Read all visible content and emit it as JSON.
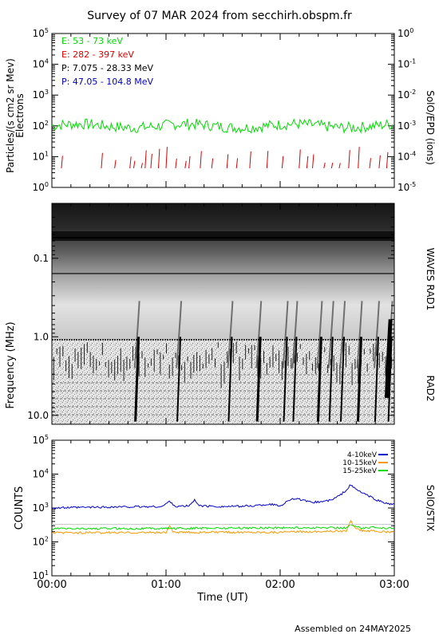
{
  "title": "Survey of 07 MAR 2024 from secchirh.obspm.fr",
  "footer": "Assembled on 24MAY2025",
  "colors": {
    "green": "#00dd00",
    "red": "#dd0000",
    "black": "#000000",
    "blue": "#0000cc",
    "orange": "#ff9900"
  },
  "chart_data": [
    {
      "type": "line",
      "name": "epd",
      "ylabel_line1": "Particles/(s cm2 sr Mev)",
      "ylabel_line2": "Electrons",
      "right_label": "SolO/EPD (ions)",
      "y_log": true,
      "ylim": [
        1,
        100000
      ],
      "yticks": [
        "10^0",
        "10^1",
        "10^2",
        "10^3",
        "10^4",
        "10^5"
      ],
      "right_ylim": [
        1e-05,
        1
      ],
      "right_yticks": [
        "10^-5",
        "10^-4",
        "10^-3",
        "10^-2",
        "10^-1",
        "10^0"
      ],
      "xlim": [
        "00:00",
        "03:00"
      ],
      "legend": [
        {
          "text": "E: 53 - 73 keV",
          "color": "#00dd00"
        },
        {
          "text": "E: 282 - 397 keV",
          "color": "#dd0000"
        },
        {
          "text": "P: 7.075 - 28.33 MeV",
          "color": "#000000"
        },
        {
          "text": "P: 47.05 - 104.8 MeV",
          "color": "#0000cc"
        }
      ],
      "series": [
        {
          "name": "E: 53 - 73 keV",
          "color": "#00dd00",
          "level": 100,
          "spread": 0.18
        },
        {
          "name": "E: 282 - 397 keV",
          "color": "#dd0000",
          "level": 6,
          "sporadic": true,
          "burst_times_min": [
            5,
            26,
            33,
            41,
            43,
            47,
            49,
            52,
            56,
            60,
            65,
            70,
            72,
            78,
            84,
            92,
            97,
            104,
            113,
            121,
            130,
            134,
            137,
            143,
            147,
            151,
            156,
            161,
            167,
            172,
            176
          ]
        }
      ]
    },
    {
      "type": "heatmap",
      "name": "waves",
      "ylabel": "Frequency (MHz)",
      "right_label_top": "WAVES RAD1",
      "right_label_bottom": "RAD2",
      "y_log": true,
      "y_reversed": true,
      "ylim": [
        0.02,
        13
      ],
      "yticks": [
        "0.1",
        "1.0",
        "10.0"
      ],
      "xlim": [
        "00:00",
        "03:00"
      ],
      "bursts_min": [
        46,
        68,
        95,
        110,
        124,
        129,
        142,
        148,
        154,
        163,
        172,
        179
      ]
    },
    {
      "type": "line",
      "name": "stix",
      "ylabel": "COUNTS",
      "right_label": "SolO/STIX",
      "y_log": true,
      "ylim": [
        10,
        100000
      ],
      "yticks": [
        "10^1",
        "10^2",
        "10^3",
        "10^4",
        "10^5"
      ],
      "xlim": [
        "00:00",
        "03:00"
      ],
      "xticks": [
        "00:00",
        "01:00",
        "02:00",
        "03:00"
      ],
      "xlabel": "Time (UT)",
      "legend": [
        {
          "text": "4-10keV",
          "color": "#0000cc"
        },
        {
          "text": "10-15keV",
          "color": "#ff9900"
        },
        {
          "text": "15-25keV",
          "color": "#00dd00"
        }
      ],
      "series": [
        {
          "name": "4-10keV",
          "color": "#0000cc",
          "points": [
            [
              0,
              1000
            ],
            [
              20,
              1050
            ],
            [
              40,
              1080
            ],
            [
              58,
              1100
            ],
            [
              62,
              1600
            ],
            [
              65,
              1100
            ],
            [
              72,
              1150
            ],
            [
              75,
              1700
            ],
            [
              78,
              1150
            ],
            [
              90,
              1100
            ],
            [
              105,
              1150
            ],
            [
              115,
              1300
            ],
            [
              120,
              1150
            ],
            [
              126,
              1900
            ],
            [
              130,
              1800
            ],
            [
              135,
              1500
            ],
            [
              140,
              1500
            ],
            [
              147,
              1700
            ],
            [
              152,
              2500
            ],
            [
              155,
              3500
            ],
            [
              157,
              4800
            ],
            [
              160,
              3500
            ],
            [
              165,
              2500
            ],
            [
              170,
              1800
            ],
            [
              175,
              1400
            ],
            [
              180,
              1250
            ]
          ]
        },
        {
          "name": "10-15keV",
          "color": "#ff9900",
          "points": [
            [
              0,
              185
            ],
            [
              60,
              190
            ],
            [
              62,
              300
            ],
            [
              64,
              190
            ],
            [
              120,
              195
            ],
            [
              155,
              210
            ],
            [
              157,
              420
            ],
            [
              159,
              280
            ],
            [
              162,
              220
            ],
            [
              180,
              190
            ]
          ]
        },
        {
          "name": "15-25keV",
          "color": "#00dd00",
          "points": [
            [
              0,
              245
            ],
            [
              60,
              250
            ],
            [
              90,
              255
            ],
            [
              120,
              260
            ],
            [
              155,
              260
            ],
            [
              157,
              330
            ],
            [
              160,
              270
            ],
            [
              180,
              255
            ]
          ]
        }
      ]
    }
  ]
}
